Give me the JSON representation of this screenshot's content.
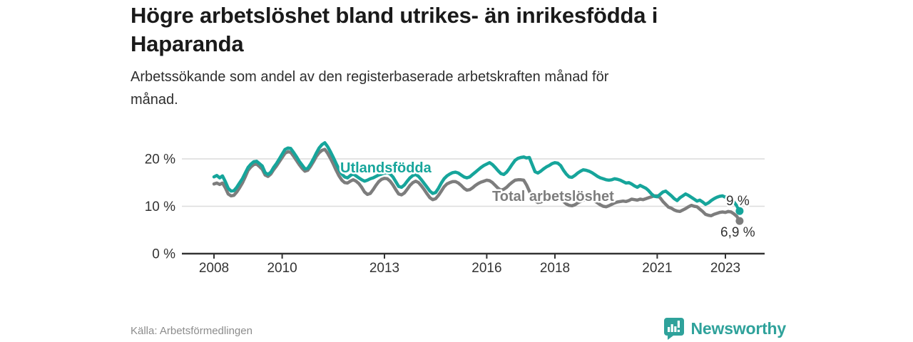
{
  "header": {
    "title": "Högre arbetslöshet bland utrikes- än inrikesfödda i\nHaparanda",
    "subtitle": "Arbetssökande som andel av den registerbaserade arbetskraften månad för\nmånad."
  },
  "footer": {
    "source": "Källa: Arbetsförmedlingen",
    "brand": "Newsworthy"
  },
  "colors": {
    "accent_teal": "#16a59b",
    "series_gray": "#7d7d7d",
    "axis": "#333333",
    "grid": "#dcdcdc",
    "brand_teal": "#2fa29b"
  },
  "chart_data": {
    "type": "line",
    "unit": "%",
    "frequency": "monthly",
    "x_start": "2008-01",
    "x_end": "2023-06",
    "x_tick_years": [
      "2008",
      "2010",
      "2013",
      "2016",
      "2018",
      "2021",
      "2023"
    ],
    "y_ticks": [
      {
        "value": 0,
        "label": "0 %"
      },
      {
        "value": 10,
        "label": "10 %"
      },
      {
        "value": 20,
        "label": "20 %"
      }
    ],
    "ylim": [
      0,
      26
    ],
    "grid": true,
    "legend_position": "inline-labels",
    "series": [
      {
        "name": "Total arbetslöshet",
        "color": "#7d7d7d",
        "end_label": "6,9 %",
        "end_value": 6.9,
        "values": [
          14.7,
          14.9,
          14.6,
          14.9,
          13.9,
          12.6,
          12.2,
          12.3,
          13.0,
          13.9,
          14.9,
          16.2,
          17.6,
          18.3,
          18.8,
          18.9,
          18.4,
          17.8,
          16.6,
          16.3,
          16.8,
          17.7,
          18.5,
          19.4,
          20.3,
          21.2,
          21.5,
          21.4,
          20.6,
          19.7,
          18.8,
          18.0,
          17.4,
          17.6,
          18.4,
          19.4,
          20.5,
          21.3,
          21.8,
          22.0,
          21.2,
          20.1,
          18.9,
          17.6,
          16.4,
          15.5,
          15.0,
          14.9,
          15.3,
          15.6,
          15.3,
          14.8,
          14.0,
          13.0,
          12.5,
          12.7,
          13.5,
          14.4,
          15.2,
          15.7,
          15.9,
          15.8,
          15.3,
          14.5,
          13.5,
          12.6,
          12.4,
          12.8,
          13.6,
          14.4,
          15.0,
          15.3,
          15.0,
          14.3,
          13.5,
          12.6,
          11.8,
          11.4,
          11.6,
          12.3,
          13.2,
          14.1,
          14.7,
          15.0,
          15.2,
          15.2,
          14.9,
          14.4,
          13.8,
          13.4,
          13.5,
          13.9,
          14.4,
          14.8,
          15.1,
          15.3,
          15.5,
          15.4,
          15.0,
          14.4,
          13.8,
          13.4,
          13.6,
          14.0,
          14.6,
          15.1,
          15.5,
          15.6,
          15.6,
          15.5,
          14.5,
          13.2,
          12.0,
          11.2,
          10.8,
          10.9,
          11.2,
          11.5,
          11.8,
          12.0,
          12.1,
          12.0,
          11.6,
          11.0,
          10.5,
          10.2,
          10.1,
          10.3,
          10.7,
          11.0,
          11.3,
          11.4,
          11.5,
          11.4,
          11.1,
          10.7,
          10.3,
          10.0,
          9.9,
          10.1,
          10.4,
          10.7,
          10.9,
          11.0,
          11.1,
          11.0,
          11.2,
          11.5,
          11.4,
          11.3,
          11.5,
          11.4,
          11.6,
          11.8,
          12.0,
          12.2,
          12.2,
          11.8,
          11.0,
          10.4,
          9.8,
          9.6,
          9.2,
          9.0,
          8.9,
          9.2,
          9.5,
          9.9,
          10.2,
          10.0,
          9.9,
          9.4,
          8.9,
          8.3,
          8.1,
          8.0,
          8.3,
          8.5,
          8.7,
          8.8,
          8.7,
          8.9,
          8.8,
          8.4,
          7.9,
          6.9
        ]
      },
      {
        "name": "Utlandsfödda",
        "color": "#16a59b",
        "end_label": "9 %",
        "end_value": 9.0,
        "values": [
          16.2,
          16.5,
          16.0,
          16.4,
          15.2,
          13.8,
          13.2,
          13.3,
          14.0,
          14.9,
          15.8,
          17.0,
          18.2,
          18.9,
          19.4,
          19.5,
          19.0,
          18.5,
          17.1,
          16.7,
          17.2,
          18.2,
          19.0,
          20.0,
          21.0,
          22.0,
          22.3,
          22.2,
          21.4,
          20.5,
          19.5,
          18.7,
          17.9,
          18.0,
          18.9,
          20.0,
          21.2,
          22.3,
          23.0,
          23.4,
          22.6,
          21.5,
          20.3,
          19.0,
          17.8,
          16.8,
          16.2,
          16.0,
          16.5,
          16.8,
          16.4,
          16.0,
          15.6,
          15.3,
          15.5,
          15.8,
          16.0,
          16.3,
          16.6,
          16.8,
          17.0,
          17.1,
          16.8,
          16.2,
          15.2,
          14.2,
          14.0,
          14.5,
          15.3,
          16.0,
          16.5,
          16.7,
          16.3,
          15.6,
          14.8,
          14.0,
          13.2,
          12.7,
          12.9,
          13.8,
          14.9,
          15.8,
          16.4,
          16.8,
          17.1,
          17.2,
          17.0,
          16.6,
          16.2,
          16.0,
          16.2,
          16.7,
          17.2,
          17.7,
          18.2,
          18.6,
          18.9,
          19.2,
          18.8,
          18.2,
          17.5,
          16.9,
          16.7,
          17.2,
          18.0,
          18.9,
          19.7,
          20.1,
          20.3,
          20.4,
          20.2,
          20.3,
          18.8,
          17.3,
          17.0,
          17.4,
          17.9,
          18.3,
          18.6,
          19.0,
          19.2,
          19.1,
          18.6,
          17.6,
          16.8,
          16.2,
          16.1,
          16.5,
          17.0,
          17.4,
          17.7,
          17.6,
          17.4,
          17.1,
          16.7,
          16.3,
          16.0,
          15.8,
          15.6,
          15.5,
          15.6,
          15.8,
          15.7,
          15.5,
          15.2,
          14.9,
          15.0,
          14.7,
          14.3,
          14.0,
          14.4,
          14.1,
          13.8,
          13.3,
          12.6,
          12.1,
          12.0,
          12.5,
          13.0,
          13.2,
          12.7,
          12.2,
          11.6,
          11.2,
          11.8,
          12.2,
          12.6,
          12.3,
          11.9,
          11.5,
          11.1,
          11.3,
          10.9,
          10.4,
          10.7,
          11.2,
          11.6,
          11.9,
          12.1,
          12.2,
          11.9,
          12.1,
          11.8,
          10.9,
          10.1,
          9.0
        ]
      }
    ]
  }
}
